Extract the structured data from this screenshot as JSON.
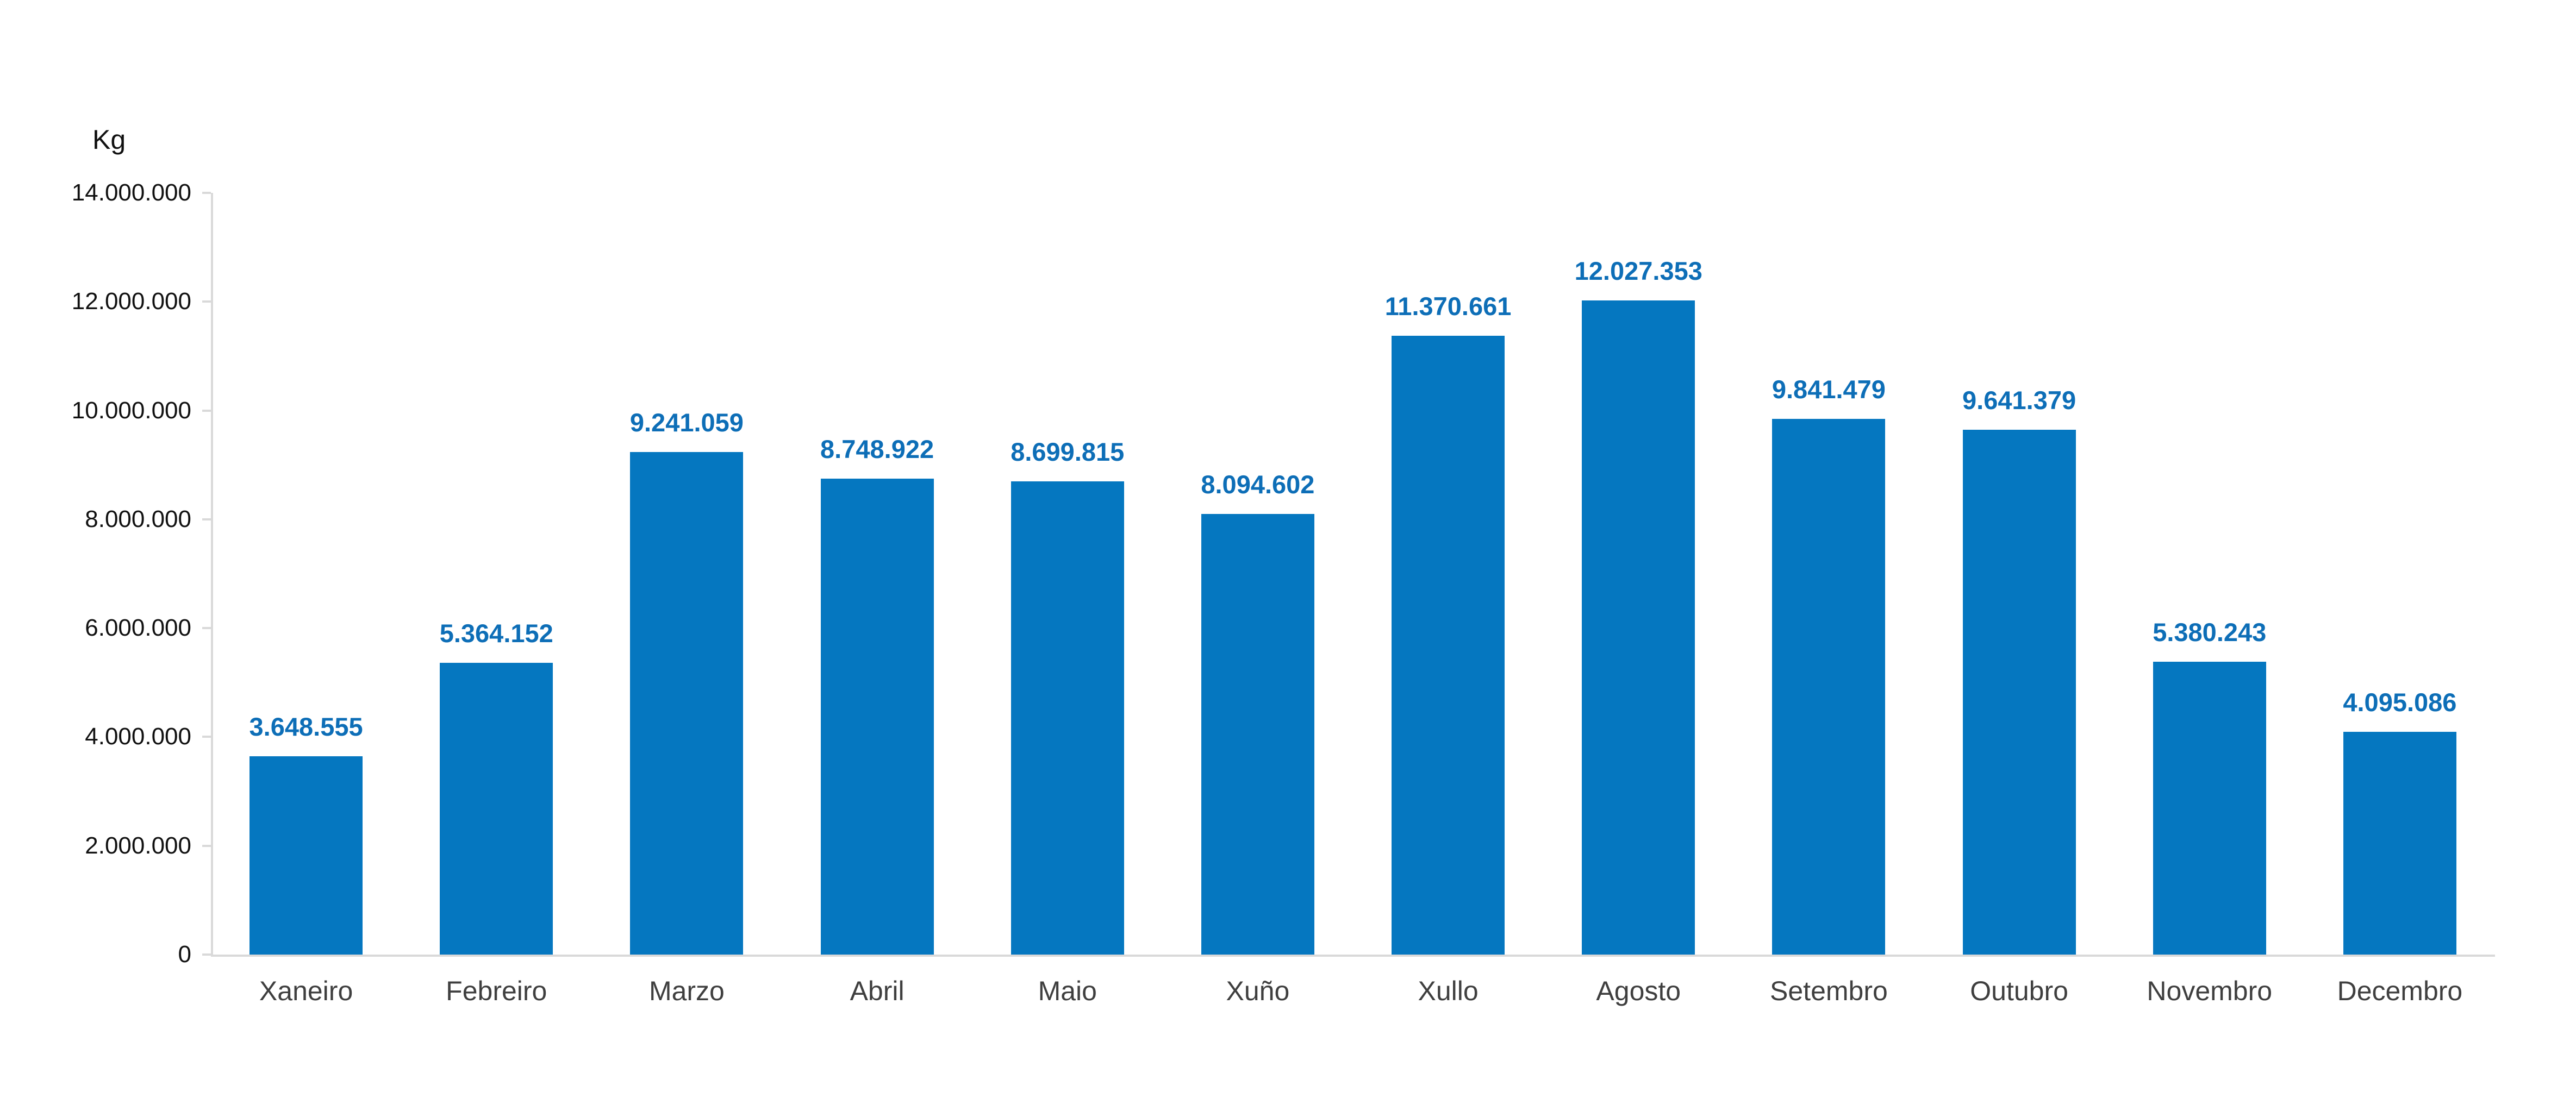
{
  "chart_data": {
    "type": "bar",
    "title": "",
    "ylabel": "Kg",
    "xlabel": "",
    "categories": [
      "Xaneiro",
      "Febreiro",
      "Marzo",
      "Abril",
      "Maio",
      "Xuño",
      "Xullo",
      "Agosto",
      "Setembro",
      "Outubro",
      "Novembro",
      "Decembro"
    ],
    "values": [
      3648555,
      5364152,
      9241059,
      8748922,
      8699815,
      8094602,
      11370661,
      12027353,
      9841479,
      9641379,
      5380243,
      4095086
    ],
    "value_labels": [
      "3.648.555",
      "5.364.152",
      "9.241.059",
      "8.748.922",
      "8.699.815",
      "8.094.602",
      "11.370.661",
      "12.027.353",
      "9.841.479",
      "9.641.379",
      "5.380.243",
      "4.095.086"
    ],
    "ylim": [
      0,
      14000000
    ],
    "ytick_values": [
      0,
      2000000,
      4000000,
      6000000,
      8000000,
      10000000,
      12000000,
      14000000
    ],
    "ytick_labels": [
      "0",
      "2.000.000",
      "4.000.000",
      "6.000.000",
      "8.000.000",
      "10.000.000",
      "12.000.000",
      "14.000.000"
    ],
    "grid": false,
    "legend": "none",
    "colors": {
      "bar": "#0577c0",
      "value_label": "#0d6eb7",
      "axis": "#d9d9d9",
      "tick_label": "#111111",
      "category_label": "#3f3f3f"
    }
  }
}
